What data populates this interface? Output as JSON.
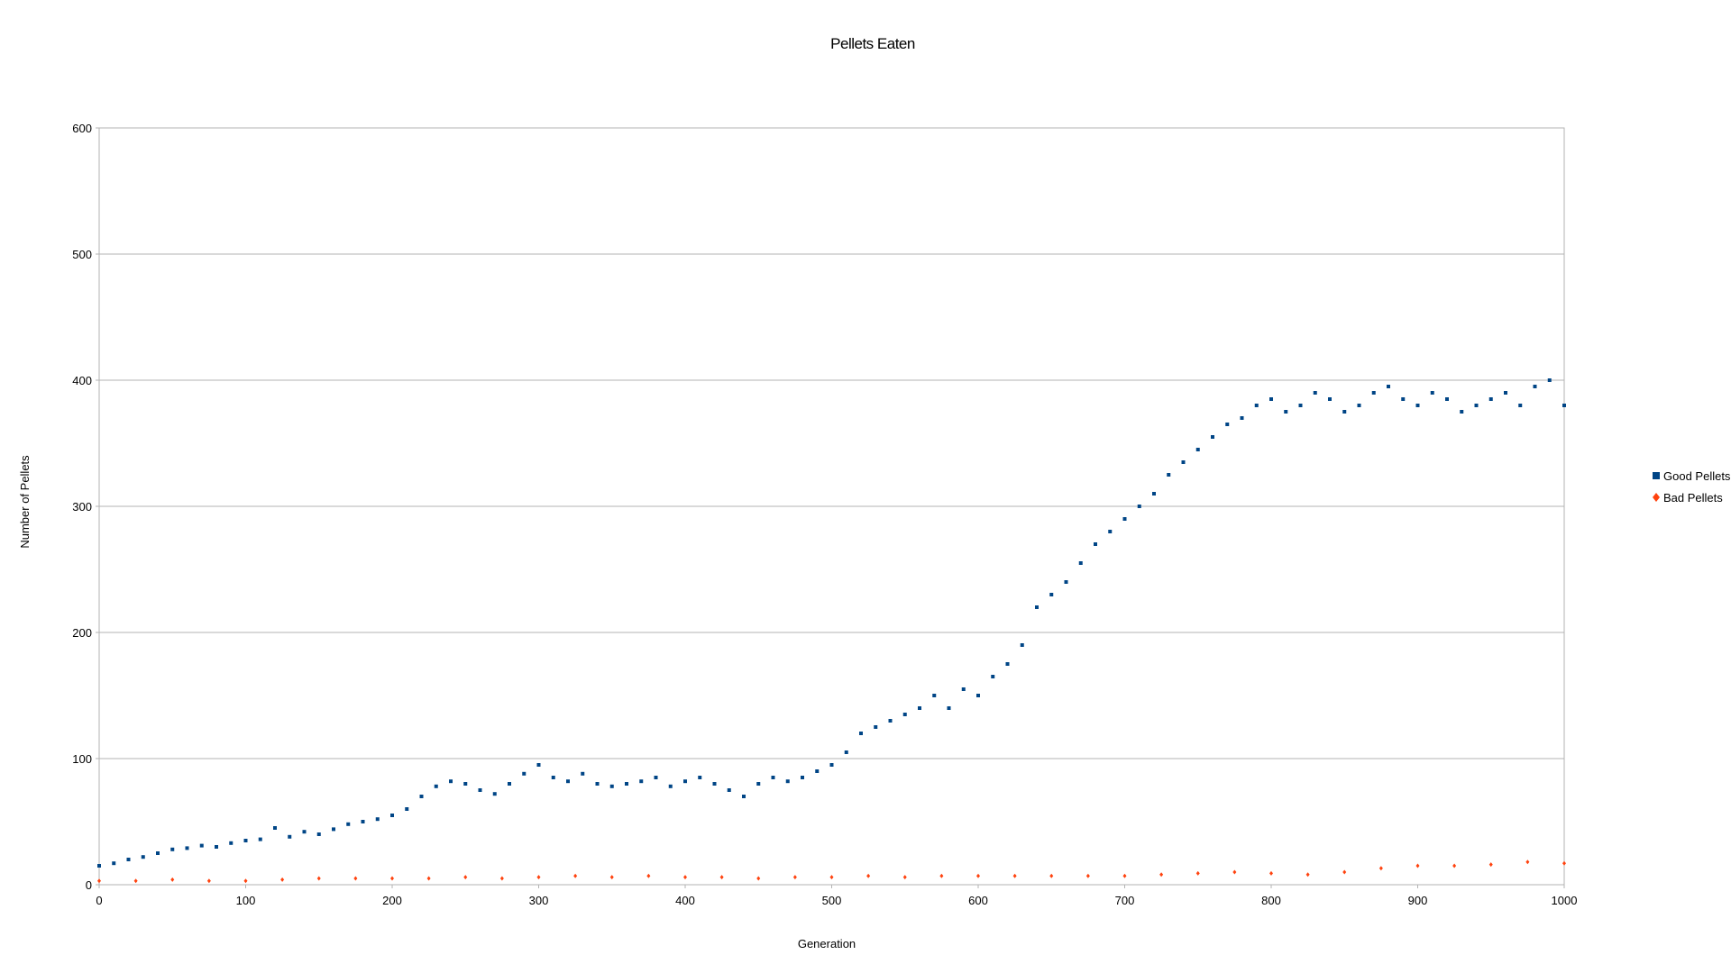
{
  "chart_data": {
    "type": "scatter",
    "title": "Pellets Eaten",
    "xlabel": "Generation",
    "ylabel": "Number of Pellets",
    "xlim": [
      0,
      1000
    ],
    "ylim": [
      0,
      600
    ],
    "x_ticks": [
      0,
      100,
      200,
      300,
      400,
      500,
      600,
      700,
      800,
      900,
      1000
    ],
    "y_ticks": [
      0,
      100,
      200,
      300,
      400,
      500,
      600
    ],
    "grid": "horizontal",
    "legend_position": "right",
    "series": [
      {
        "name": "Good Pellets",
        "color": "#004586",
        "marker": "square",
        "values": [
          [
            0,
            15
          ],
          [
            10,
            17
          ],
          [
            20,
            20
          ],
          [
            30,
            22
          ],
          [
            40,
            25
          ],
          [
            50,
            28
          ],
          [
            60,
            29
          ],
          [
            70,
            31
          ],
          [
            80,
            30
          ],
          [
            90,
            33
          ],
          [
            100,
            35
          ],
          [
            110,
            36
          ],
          [
            120,
            45
          ],
          [
            130,
            38
          ],
          [
            140,
            42
          ],
          [
            150,
            40
          ],
          [
            160,
            44
          ],
          [
            170,
            48
          ],
          [
            180,
            50
          ],
          [
            190,
            52
          ],
          [
            200,
            55
          ],
          [
            210,
            60
          ],
          [
            220,
            70
          ],
          [
            230,
            78
          ],
          [
            240,
            82
          ],
          [
            250,
            80
          ],
          [
            260,
            75
          ],
          [
            270,
            72
          ],
          [
            280,
            80
          ],
          [
            290,
            88
          ],
          [
            300,
            95
          ],
          [
            310,
            85
          ],
          [
            320,
            82
          ],
          [
            330,
            88
          ],
          [
            340,
            80
          ],
          [
            350,
            78
          ],
          [
            360,
            80
          ],
          [
            370,
            82
          ],
          [
            380,
            85
          ],
          [
            390,
            78
          ],
          [
            400,
            82
          ],
          [
            410,
            85
          ],
          [
            420,
            80
          ],
          [
            430,
            75
          ],
          [
            440,
            70
          ],
          [
            450,
            80
          ],
          [
            460,
            85
          ],
          [
            470,
            82
          ],
          [
            480,
            85
          ],
          [
            490,
            90
          ],
          [
            500,
            95
          ],
          [
            510,
            105
          ],
          [
            520,
            120
          ],
          [
            530,
            125
          ],
          [
            540,
            130
          ],
          [
            550,
            135
          ],
          [
            560,
            140
          ],
          [
            570,
            150
          ],
          [
            580,
            140
          ],
          [
            590,
            155
          ],
          [
            600,
            150
          ],
          [
            610,
            165
          ],
          [
            620,
            175
          ],
          [
            630,
            190
          ],
          [
            640,
            220
          ],
          [
            650,
            230
          ],
          [
            660,
            240
          ],
          [
            670,
            255
          ],
          [
            680,
            270
          ],
          [
            690,
            280
          ],
          [
            700,
            290
          ],
          [
            710,
            300
          ],
          [
            720,
            310
          ],
          [
            730,
            325
          ],
          [
            740,
            335
          ],
          [
            750,
            345
          ],
          [
            760,
            355
          ],
          [
            770,
            365
          ],
          [
            780,
            370
          ],
          [
            790,
            380
          ],
          [
            800,
            385
          ],
          [
            810,
            375
          ],
          [
            820,
            380
          ],
          [
            830,
            390
          ],
          [
            840,
            385
          ],
          [
            850,
            375
          ],
          [
            860,
            380
          ],
          [
            870,
            390
          ],
          [
            880,
            395
          ],
          [
            890,
            385
          ],
          [
            900,
            380
          ],
          [
            910,
            390
          ],
          [
            920,
            385
          ],
          [
            930,
            375
          ],
          [
            940,
            380
          ],
          [
            950,
            385
          ],
          [
            960,
            390
          ],
          [
            970,
            380
          ],
          [
            980,
            395
          ],
          [
            990,
            400
          ],
          [
            1000,
            380
          ]
        ]
      },
      {
        "name": "Bad Pellets",
        "color": "#ff420e",
        "marker": "diamond",
        "values": [
          [
            0,
            3
          ],
          [
            25,
            3
          ],
          [
            50,
            4
          ],
          [
            75,
            3
          ],
          [
            100,
            3
          ],
          [
            125,
            4
          ],
          [
            150,
            5
          ],
          [
            175,
            5
          ],
          [
            200,
            5
          ],
          [
            225,
            5
          ],
          [
            250,
            6
          ],
          [
            275,
            5
          ],
          [
            300,
            6
          ],
          [
            325,
            7
          ],
          [
            350,
            6
          ],
          [
            375,
            7
          ],
          [
            400,
            6
          ],
          [
            425,
            6
          ],
          [
            450,
            5
          ],
          [
            475,
            6
          ],
          [
            500,
            6
          ],
          [
            525,
            7
          ],
          [
            550,
            6
          ],
          [
            575,
            7
          ],
          [
            600,
            7
          ],
          [
            625,
            7
          ],
          [
            650,
            7
          ],
          [
            675,
            7
          ],
          [
            700,
            7
          ],
          [
            725,
            8
          ],
          [
            750,
            9
          ],
          [
            775,
            10
          ],
          [
            800,
            9
          ],
          [
            825,
            8
          ],
          [
            850,
            10
          ],
          [
            875,
            13
          ],
          [
            900,
            15
          ],
          [
            925,
            15
          ],
          [
            950,
            16
          ],
          [
            975,
            18
          ],
          [
            1000,
            17
          ]
        ]
      }
    ]
  }
}
